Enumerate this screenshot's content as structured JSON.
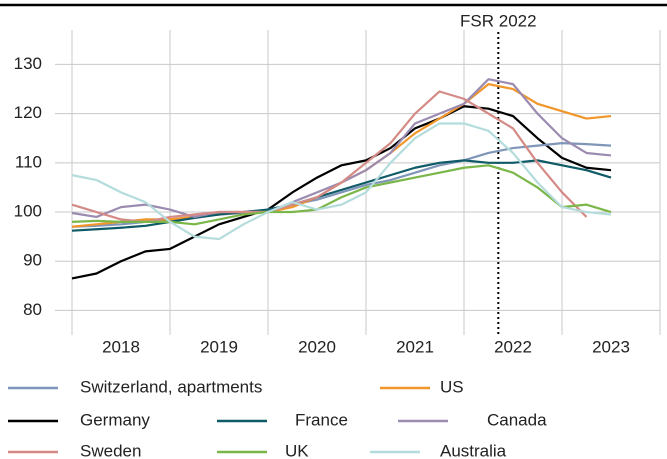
{
  "chart_data": {
    "type": "line",
    "annotation": {
      "text": "FSR 2022",
      "x": 2022.35
    },
    "x": [
      2018,
      2018.25,
      2018.5,
      2018.75,
      2019,
      2019.25,
      2019.5,
      2019.75,
      2020,
      2020.25,
      2020.5,
      2020.75,
      2021,
      2021.25,
      2021.5,
      2021.75,
      2022,
      2022.25,
      2022.5,
      2022.75,
      2023,
      2023.25,
      2023.5
    ],
    "xlim": [
      2018,
      2024
    ],
    "xticks": [
      {
        "value": 2018.5,
        "label": "2018"
      },
      {
        "value": 2019.5,
        "label": "2019"
      },
      {
        "value": 2020.5,
        "label": "2020"
      },
      {
        "value": 2021.5,
        "label": "2021"
      },
      {
        "value": 2022.5,
        "label": "2022"
      },
      {
        "value": 2023.5,
        "label": "2023"
      }
    ],
    "xgrid": [
      2018,
      2019,
      2020,
      2021,
      2022,
      2023,
      2024
    ],
    "ylim": [
      75,
      137
    ],
    "yticks": [
      80,
      90,
      100,
      110,
      120,
      130
    ],
    "grid": true,
    "series": [
      {
        "name": "Switzerland, apartments",
        "color": "#7f96b8",
        "values": [
          97,
          97.2,
          97.5,
          98,
          98.5,
          99,
          99.5,
          99.8,
          100.5,
          101.5,
          102.5,
          104,
          105.5,
          106.5,
          108,
          109.5,
          110.5,
          112,
          113,
          113.5,
          114,
          113.8,
          113.5
        ]
      },
      {
        "name": "US",
        "color": "#f0962a",
        "values": [
          97,
          97.5,
          98,
          98.5,
          98.5,
          99,
          99.5,
          100,
          100,
          101,
          103,
          106,
          108.5,
          112,
          116,
          119,
          122,
          126,
          125,
          122,
          120.5,
          119,
          119.5
        ]
      },
      {
        "name": "Germany",
        "color": "#000000",
        "values": [
          86.5,
          87.5,
          90,
          92,
          92.5,
          95,
          97.5,
          99,
          100.5,
          104,
          107,
          109.5,
          110.5,
          113,
          117,
          119,
          121.5,
          121,
          119.5,
          115,
          111,
          109,
          108.5
        ]
      },
      {
        "name": "France",
        "color": "#0e5a66",
        "values": [
          96.2,
          96.5,
          96.8,
          97.2,
          98,
          98.8,
          99.5,
          100,
          100.5,
          101.5,
          103,
          104.5,
          106,
          107.5,
          109,
          110,
          110.5,
          110,
          110,
          110.5,
          109.5,
          108.5,
          107
        ]
      },
      {
        "name": "Canada",
        "color": "#9b8bb0",
        "values": [
          99.8,
          99,
          101,
          101.5,
          100.5,
          99,
          100,
          100,
          100,
          102,
          104,
          106,
          108.5,
          112,
          118,
          120,
          122,
          127,
          126,
          120,
          115,
          112,
          111.5
        ]
      },
      {
        "name": "Sweden",
        "color": "#d48a86",
        "values": [
          101.5,
          100,
          98.5,
          98,
          99,
          99.5,
          100,
          100,
          100,
          101.5,
          103,
          106,
          110,
          114,
          120,
          124.5,
          123,
          120,
          117,
          110,
          104,
          99,
          null
        ]
      },
      {
        "name": "UK",
        "color": "#7ab648",
        "values": [
          98,
          98.2,
          98,
          98,
          98,
          97.5,
          98.5,
          99.5,
          100,
          100,
          100.5,
          103,
          105,
          106,
          107,
          108,
          109,
          109.5,
          108,
          105,
          101,
          101.5,
          100
        ]
      },
      {
        "name": "Australia",
        "color": "#b5dcdc",
        "values": [
          107.5,
          106.5,
          104,
          102,
          98,
          95,
          94.5,
          97.5,
          100,
          102,
          100.5,
          101.5,
          104,
          110,
          115,
          118,
          118,
          116.5,
          112,
          106,
          101,
          100,
          99.5
        ]
      }
    ]
  }
}
